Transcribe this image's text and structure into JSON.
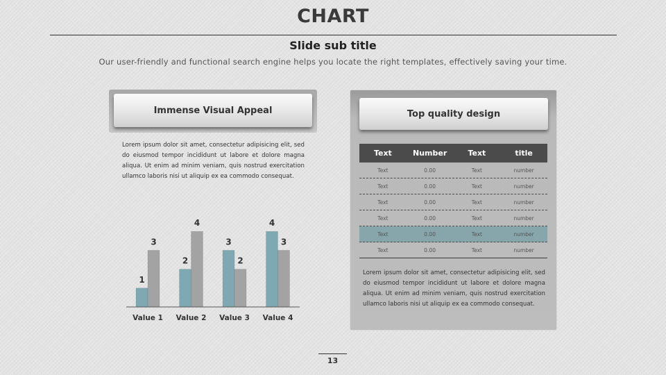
{
  "slide": {
    "title": "CHART",
    "subtitle": "Slide sub title",
    "tagline": "Our user-friendly and functional search engine helps you locate the right templates, effectively saving your time.",
    "page_number": "13"
  },
  "left": {
    "button_label": "Immense Visual Appeal",
    "paragraph": "Lorem ipsum dolor sit amet, consectetur adipisicing elit, sed do eiusmod tempor incididunt ut labore et dolore magna aliqua. Ut enim ad minim veniam, quis nostrud exercitation ullamco laboris nisi ut aliquip ex ea commodo consequat."
  },
  "right": {
    "button_label": "Top quality design",
    "table": {
      "headers": [
        "Text",
        "Number",
        "Text",
        "title"
      ],
      "rows": [
        [
          "Text",
          "0.00",
          "Text",
          "number"
        ],
        [
          "Text",
          "0.00",
          "Text",
          "number"
        ],
        [
          "Text",
          "0.00",
          "Text",
          "number"
        ],
        [
          "Text",
          "0.00",
          "Text",
          "number"
        ],
        [
          "Text",
          "0.00",
          "Text",
          "number"
        ],
        [
          "Text",
          "0.00",
          "Text",
          "number"
        ]
      ],
      "highlight_row": 4
    },
    "paragraph": "Lorem ipsum dolor sit amet, consectetur adipisicing elit, sed do eiusmod tempor incididunt ut labore et dolore magna aliqua. Ut enim ad minim veniam, quis nostrud exercitation ullamco laboris nisi ut aliquip ex ea commodo consequat."
  },
  "colors": {
    "series_teal": "#7ea9b3",
    "series_gray": "#a3a3a3",
    "highlight_row": "#86a6ac",
    "table_header": "#4b4b4b"
  },
  "chart_data": {
    "type": "bar",
    "categories": [
      "Value 1",
      "Value 2",
      "Value 3",
      "Value 4"
    ],
    "series": [
      {
        "values": [
          1,
          2,
          3,
          4
        ],
        "color": "#7ea9b3"
      },
      {
        "values": [
          3,
          4,
          2,
          3
        ],
        "color": "#a3a3a3"
      }
    ],
    "ylim": [
      0,
      4
    ],
    "grid": false,
    "legend": "none",
    "data_labels": true
  }
}
